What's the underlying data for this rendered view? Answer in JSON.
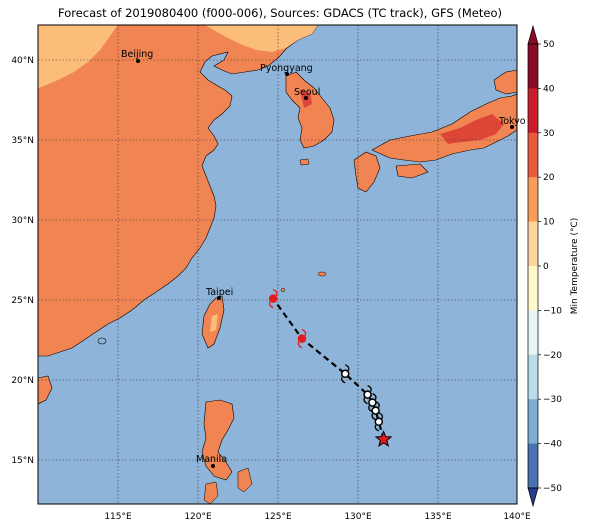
{
  "title": "Forecast of 2019080400 (f000-006), Sources: GDACS (TC track), GFS (Meteo)",
  "map": {
    "lat_labels": [
      "40°N",
      "35°N",
      "30°N",
      "25°N",
      "20°N",
      "15°N"
    ],
    "lon_labels": [
      "115°E",
      "120°E",
      "125°E",
      "130°E",
      "135°E",
      "140°E"
    ],
    "colors": {
      "sea": "#8fb4d9",
      "land_warm": "#f08452",
      "land_mild": "#fdbd7a",
      "land_hot": "#dd4636",
      "track": "#000000",
      "marker_red": "#e41a1c"
    },
    "cities": [
      {
        "name": "Beijing"
      },
      {
        "name": "Pyongyang"
      },
      {
        "name": "Seoul"
      },
      {
        "name": "Tokyo"
      },
      {
        "name": "Taipei"
      },
      {
        "name": "Manila"
      }
    ],
    "track_lat": [
      16.1,
      17.2,
      17.9,
      18.4,
      18.9,
      20.2,
      22.4,
      24.9
    ],
    "track_lon": [
      131.6,
      131.3,
      131.1,
      130.9,
      130.6,
      129.2,
      126.5,
      124.7
    ]
  },
  "colorbar": {
    "label": "Min Temperature (°C)",
    "ticks": [
      "50",
      "40",
      "30",
      "20",
      "10",
      "0",
      "−10",
      "−20",
      "−30",
      "−40",
      "−50"
    ],
    "colors": [
      "#8b0a26",
      "#c81e2b",
      "#ea5a3e",
      "#f89c59",
      "#fdd49a",
      "#fff8c8",
      "#e7f6f4",
      "#b7dcea",
      "#7daed1",
      "#4a71b0",
      "#2a3a8e"
    ]
  }
}
